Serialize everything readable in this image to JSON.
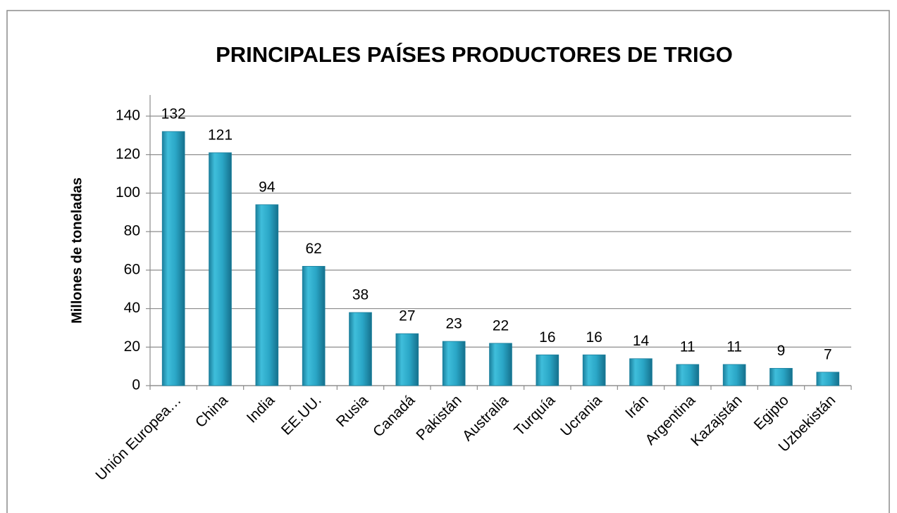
{
  "chart_data": {
    "type": "bar",
    "title": "PRINCIPALES PAÍSES PRODUCTORES DE TRIGO",
    "y_label": "Millones de toneladas",
    "categories": [
      "Unión Europea…",
      "China",
      "India",
      "EE.UU.",
      "Rusia",
      "Canadá",
      "Pakistán",
      "Australia",
      "Turquía",
      "Ucrania",
      "Irán",
      "Argentina",
      "Kazajstán",
      "Egipto",
      "Uzbekistán"
    ],
    "values": [
      132,
      121,
      94,
      62,
      38,
      27,
      23,
      22,
      16,
      16,
      14,
      11,
      11,
      9,
      7
    ],
    "color": "#2aa6c6",
    "ylim": [
      0,
      140
    ],
    "yticks": [
      0,
      20,
      40,
      60,
      80,
      100,
      120,
      140
    ],
    "grid": true
  }
}
